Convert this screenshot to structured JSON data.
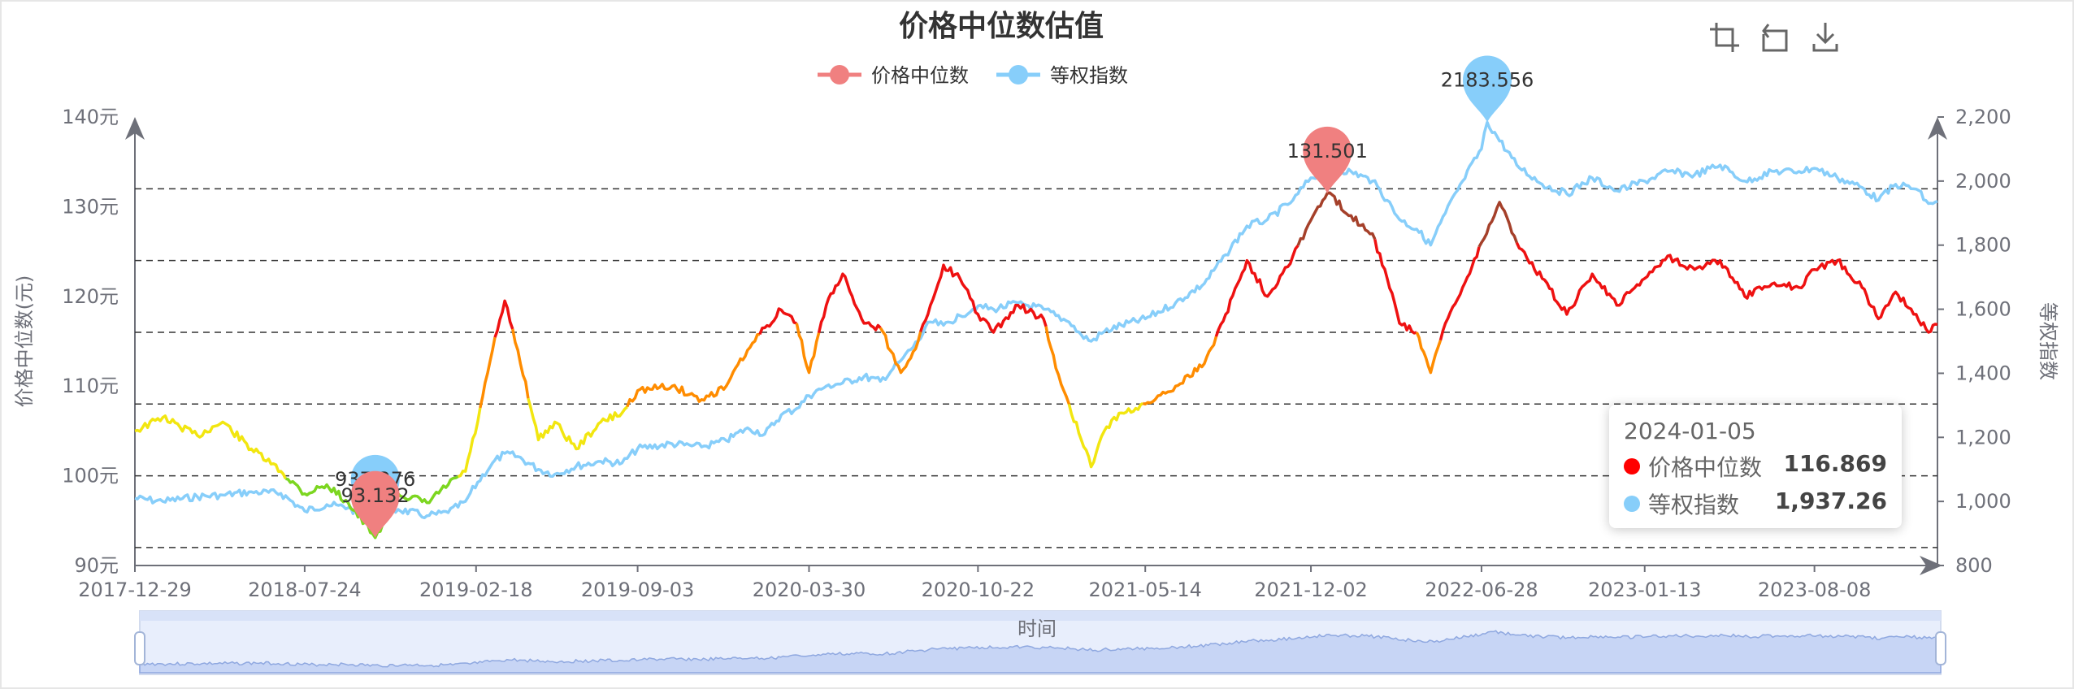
{
  "chart_data": {
    "type": "line",
    "title": "价格中位数估值",
    "legend": [
      {
        "name": "价格中位数",
        "color": "#f08080"
      },
      {
        "name": "等权指数",
        "color": "#87cefa"
      }
    ],
    "x_labels": [
      "2017-12-29",
      "2018-07-24",
      "2019-02-18",
      "2019-09-03",
      "2020-03-30",
      "2020-10-22",
      "2021-05-14",
      "2021-12-02",
      "2022-06-28",
      "2023-01-13",
      "2023-08-08"
    ],
    "x_start": "2017-12-29",
    "x_end": "2024-01-05",
    "x_axis_name": "时间",
    "y_left": {
      "name": "价格中位数(元)",
      "min": 90,
      "max": 140,
      "ticks": [
        "90元",
        "100元",
        "110元",
        "120元",
        "130元",
        "140元"
      ]
    },
    "y_right": {
      "name": "等权指数",
      "min": 800,
      "max": 2200,
      "ticks": [
        "800",
        "1,000",
        "1,200",
        "1,400",
        "1,600",
        "1,800",
        "2,000",
        "2,200"
      ]
    },
    "markpoints": {
      "median_max": {
        "label": "131.501",
        "date": "2021-12-22",
        "value": 131.5
      },
      "median_min": {
        "label": "93.132",
        "date": "2018-10-18",
        "value": 93.1
      },
      "index_max": {
        "label": "2183.556",
        "date": "2022-07-05",
        "value": 2183.6
      },
      "index_min": {
        "label": "937.276",
        "date": "2018-10-18",
        "value": 937.3
      }
    },
    "bands": [
      {
        "from": 0,
        "to": 100,
        "color": "#7cd620"
      },
      {
        "from": 100,
        "to": 108,
        "color": "#f2e610"
      },
      {
        "from": 108,
        "to": 116,
        "color": "#ff8c00"
      },
      {
        "from": 116,
        "to": 126,
        "color": "#ee1111"
      },
      {
        "from": 126,
        "to": 200,
        "color": "#a5402a"
      }
    ],
    "markline_values": [
      92,
      100,
      108,
      116,
      124,
      132
    ],
    "series": [
      {
        "name": "价格中位数",
        "points": [
          [
            "2017-12-29",
            105.0
          ],
          [
            "2018-02-01",
            106.5
          ],
          [
            "2018-03-15",
            104.5
          ],
          [
            "2018-04-15",
            106.0
          ],
          [
            "2018-05-20",
            103.0
          ],
          [
            "2018-06-25",
            100.5
          ],
          [
            "2018-07-24",
            98.0
          ],
          [
            "2018-08-20",
            99.0
          ],
          [
            "2018-09-15",
            97.0
          ],
          [
            "2018-10-18",
            93.1
          ],
          [
            "2018-11-15",
            98.0
          ],
          [
            "2018-12-20",
            97.0
          ],
          [
            "2019-01-15",
            99.0
          ],
          [
            "2019-02-05",
            100.5
          ],
          [
            "2019-02-20",
            106.0
          ],
          [
            "2019-03-10",
            114.0
          ],
          [
            "2019-03-25",
            119.5
          ],
          [
            "2019-04-10",
            114.0
          ],
          [
            "2019-05-05",
            104.0
          ],
          [
            "2019-05-25",
            106.0
          ],
          [
            "2019-06-20",
            103.0
          ],
          [
            "2019-07-20",
            106.0
          ],
          [
            "2019-08-15",
            107.0
          ],
          [
            "2019-09-03",
            109.5
          ],
          [
            "2019-10-15",
            110.0
          ],
          [
            "2019-11-20",
            108.5
          ],
          [
            "2019-12-20",
            110.0
          ],
          [
            "2020-01-15",
            114.0
          ],
          [
            "2020-02-05",
            116.5
          ],
          [
            "2020-02-25",
            118.5
          ],
          [
            "2020-03-15",
            117.0
          ],
          [
            "2020-03-30",
            111.5
          ],
          [
            "2020-04-20",
            119.0
          ],
          [
            "2020-05-10",
            122.5
          ],
          [
            "2020-06-05",
            117.0
          ],
          [
            "2020-06-25",
            116.5
          ],
          [
            "2020-07-20",
            111.5
          ],
          [
            "2020-08-10",
            115.0
          ],
          [
            "2020-08-25",
            119.0
          ],
          [
            "2020-09-10",
            123.5
          ],
          [
            "2020-09-30",
            122.0
          ],
          [
            "2020-10-22",
            118.0
          ],
          [
            "2020-11-10",
            116.0
          ],
          [
            "2020-12-10",
            119.0
          ],
          [
            "2021-01-10",
            117.5
          ],
          [
            "2021-01-25",
            112.0
          ],
          [
            "2021-02-10",
            108.0
          ],
          [
            "2021-02-25",
            104.0
          ],
          [
            "2021-03-09",
            101.0
          ],
          [
            "2021-03-25",
            105.0
          ],
          [
            "2021-04-15",
            107.0
          ],
          [
            "2021-05-14",
            108.0
          ],
          [
            "2021-06-20",
            110.0
          ],
          [
            "2021-07-25",
            112.5
          ],
          [
            "2021-08-20",
            118.0
          ],
          [
            "2021-09-15",
            124.0
          ],
          [
            "2021-10-10",
            120.0
          ],
          [
            "2021-11-10",
            124.5
          ],
          [
            "2021-12-02",
            128.5
          ],
          [
            "2021-12-22",
            131.5
          ],
          [
            "2022-01-20",
            129.0
          ],
          [
            "2022-02-15",
            127.0
          ],
          [
            "2022-03-05",
            122.0
          ],
          [
            "2022-03-20",
            117.0
          ],
          [
            "2022-04-10",
            116.0
          ],
          [
            "2022-04-27",
            111.5
          ],
          [
            "2022-05-15",
            117.0
          ],
          [
            "2022-06-05",
            121.0
          ],
          [
            "2022-06-28",
            126.0
          ],
          [
            "2022-07-20",
            130.5
          ],
          [
            "2022-08-10",
            126.0
          ],
          [
            "2022-09-10",
            122.0
          ],
          [
            "2022-10-10",
            118.0
          ],
          [
            "2022-11-10",
            122.5
          ],
          [
            "2022-12-10",
            119.0
          ],
          [
            "2023-01-13",
            122.0
          ],
          [
            "2023-02-10",
            124.5
          ],
          [
            "2023-03-15",
            123.0
          ],
          [
            "2023-04-15",
            124.0
          ],
          [
            "2023-05-15",
            120.0
          ],
          [
            "2023-06-20",
            121.5
          ],
          [
            "2023-07-20",
            121.0
          ],
          [
            "2023-08-08",
            123.0
          ],
          [
            "2023-09-05",
            124.0
          ],
          [
            "2023-10-05",
            121.0
          ],
          [
            "2023-10-25",
            117.5
          ],
          [
            "2023-11-15",
            120.5
          ],
          [
            "2023-12-10",
            118.0
          ],
          [
            "2023-12-25",
            116.0
          ],
          [
            "2024-01-05",
            116.869
          ]
        ]
      },
      {
        "name": "等权指数",
        "points": [
          [
            "2017-12-29",
            1010
          ],
          [
            "2018-02-01",
            1000
          ],
          [
            "2018-03-15",
            1015
          ],
          [
            "2018-04-15",
            1020
          ],
          [
            "2018-05-20",
            1030
          ],
          [
            "2018-06-25",
            1025
          ],
          [
            "2018-07-24",
            970
          ],
          [
            "2018-08-20",
            990
          ],
          [
            "2018-09-15",
            980
          ],
          [
            "2018-10-18",
            937.3
          ],
          [
            "2018-11-15",
            975
          ],
          [
            "2018-12-20",
            955
          ],
          [
            "2019-01-15",
            965
          ],
          [
            "2019-02-05",
            1000
          ],
          [
            "2019-02-20",
            1060
          ],
          [
            "2019-03-10",
            1120
          ],
          [
            "2019-03-25",
            1150
          ],
          [
            "2019-04-10",
            1140
          ],
          [
            "2019-05-05",
            1100
          ],
          [
            "2019-05-25",
            1085
          ],
          [
            "2019-06-20",
            1110
          ],
          [
            "2019-07-20",
            1125
          ],
          [
            "2019-08-15",
            1120
          ],
          [
            "2019-09-03",
            1165
          ],
          [
            "2019-10-15",
            1180
          ],
          [
            "2019-11-20",
            1170
          ],
          [
            "2019-12-20",
            1190
          ],
          [
            "2020-01-15",
            1230
          ],
          [
            "2020-02-05",
            1210
          ],
          [
            "2020-02-25",
            1270
          ],
          [
            "2020-03-15",
            1290
          ],
          [
            "2020-03-30",
            1330
          ],
          [
            "2020-04-20",
            1360
          ],
          [
            "2020-05-10",
            1370
          ],
          [
            "2020-06-05",
            1390
          ],
          [
            "2020-06-25",
            1375
          ],
          [
            "2020-07-20",
            1440
          ],
          [
            "2020-08-10",
            1500
          ],
          [
            "2020-08-25",
            1560
          ],
          [
            "2020-09-10",
            1550
          ],
          [
            "2020-09-30",
            1580
          ],
          [
            "2020-10-22",
            1610
          ],
          [
            "2020-11-10",
            1600
          ],
          [
            "2020-12-10",
            1620
          ],
          [
            "2021-01-10",
            1600
          ],
          [
            "2021-01-25",
            1580
          ],
          [
            "2021-02-10",
            1560
          ],
          [
            "2021-02-25",
            1520
          ],
          [
            "2021-03-09",
            1500
          ],
          [
            "2021-03-25",
            1530
          ],
          [
            "2021-04-15",
            1550
          ],
          [
            "2021-05-14",
            1570
          ],
          [
            "2021-06-20",
            1620
          ],
          [
            "2021-07-25",
            1680
          ],
          [
            "2021-08-20",
            1770
          ],
          [
            "2021-09-15",
            1860
          ],
          [
            "2021-10-10",
            1880
          ],
          [
            "2021-11-10",
            1940
          ],
          [
            "2021-12-02",
            2010
          ],
          [
            "2021-12-22",
            2040
          ],
          [
            "2022-01-20",
            2030
          ],
          [
            "2022-02-15",
            2000
          ],
          [
            "2022-03-05",
            1940
          ],
          [
            "2022-03-20",
            1880
          ],
          [
            "2022-04-10",
            1850
          ],
          [
            "2022-04-27",
            1800
          ],
          [
            "2022-05-15",
            1900
          ],
          [
            "2022-06-05",
            2000
          ],
          [
            "2022-06-28",
            2100
          ],
          [
            "2022-07-05",
            2183.6
          ],
          [
            "2022-08-10",
            2050
          ],
          [
            "2022-09-10",
            1990
          ],
          [
            "2022-10-10",
            1960
          ],
          [
            "2022-11-10",
            2010
          ],
          [
            "2022-12-10",
            1970
          ],
          [
            "2023-01-13",
            2000
          ],
          [
            "2023-02-10",
            2030
          ],
          [
            "2023-03-15",
            2020
          ],
          [
            "2023-04-15",
            2050
          ],
          [
            "2023-05-15",
            2000
          ],
          [
            "2023-06-20",
            2030
          ],
          [
            "2023-07-20",
            2030
          ],
          [
            "2023-08-08",
            2040
          ],
          [
            "2023-09-05",
            2010
          ],
          [
            "2023-10-05",
            1980
          ],
          [
            "2023-10-25",
            1940
          ],
          [
            "2023-11-15",
            1990
          ],
          [
            "2023-12-10",
            1975
          ],
          [
            "2023-12-25",
            1930
          ],
          [
            "2024-01-05",
            1937.26
          ]
        ]
      }
    ],
    "tooltip": {
      "date": "2024-01-05",
      "rows": [
        {
          "name": "价格中位数",
          "value": "116.869",
          "color": "#ff0000"
        },
        {
          "name": "等权指数",
          "value": "1,937.26",
          "color": "#87cefa"
        }
      ]
    },
    "grid": "horizontal dashed marklines",
    "legend_position": "top-center"
  },
  "toolbox": [
    "zoom-icon",
    "restore-icon",
    "download-icon"
  ]
}
